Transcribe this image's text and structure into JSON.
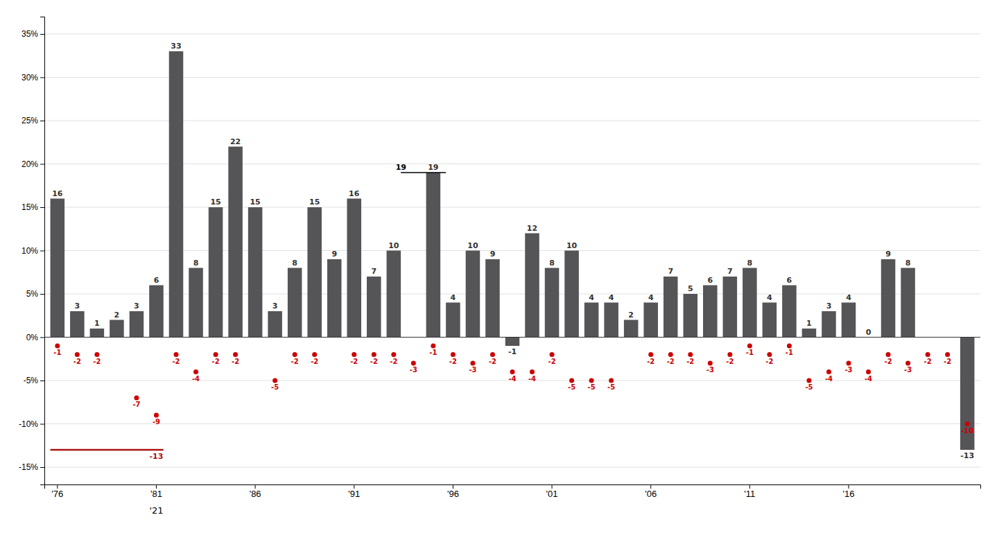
{
  "chart_data": {
    "type": "bar",
    "categories": [
      "'76",
      null,
      null,
      null,
      null,
      "'81",
      null,
      null,
      null,
      null,
      "'86",
      null,
      null,
      null,
      null,
      "'91",
      null,
      null,
      null,
      null,
      "'96",
      null,
      null,
      null,
      null,
      "'01",
      null,
      null,
      null,
      null,
      "'06",
      null,
      null,
      null,
      null,
      "'11",
      null,
      null,
      null,
      null,
      "'16",
      null,
      null,
      null,
      null,
      null,
      null
    ],
    "series": [
      {
        "type": "bar",
        "color": "#555558",
        "values": [
          16,
          3,
          1,
          2,
          3,
          6,
          33,
          8,
          15,
          22,
          15,
          3,
          8,
          15,
          9,
          16,
          7,
          10,
          null,
          19,
          4,
          10,
          9,
          -1,
          12,
          8,
          10,
          4,
          4,
          2,
          4,
          7,
          5,
          6,
          7,
          8,
          4,
          6,
          1,
          3,
          4,
          0,
          9,
          8,
          null,
          null,
          -13
        ]
      },
      {
        "type": "scatter",
        "marker": "circle",
        "color": "#cc0000",
        "values": [
          -1,
          -2,
          -2,
          null,
          -7,
          -9,
          -2,
          -4,
          -2,
          -2,
          null,
          -5,
          -2,
          -2,
          null,
          -2,
          -2,
          -2,
          -3,
          -1,
          -2,
          -3,
          -2,
          -4,
          -4,
          -2,
          -5,
          -5,
          -5,
          null,
          -2,
          -2,
          -2,
          -3,
          -2,
          -1,
          -2,
          -1,
          -5,
          -4,
          -3,
          -4,
          -2,
          -3,
          -2,
          -2,
          -10
        ]
      }
    ],
    "data_labels": true,
    "annotations": [
      {
        "text": "19",
        "y": 19,
        "color": "#000000",
        "between": [
          17,
          20
        ],
        "anchor": 17
      },
      {
        "text": "-13",
        "y": -13,
        "color": "#aa1111",
        "over": [
          0,
          5
        ],
        "anchor": 5
      },
      {
        "text": "'21",
        "anchor": 5
      }
    ],
    "ylim": [
      -17,
      37
    ],
    "yticks": [
      {
        "value": -15,
        "label": "-15%"
      },
      {
        "value": -10,
        "label": "-10%"
      },
      {
        "value": -5,
        "label": "-5%"
      },
      {
        "value": 0,
        "label": "0%"
      },
      {
        "value": 5,
        "label": "5%"
      },
      {
        "value": 10,
        "label": "10%"
      },
      {
        "value": 15,
        "label": "15%"
      },
      {
        "value": 20,
        "label": "20%"
      },
      {
        "value": 25,
        "label": "25%"
      },
      {
        "value": 30,
        "label": "30%"
      },
      {
        "value": 35,
        "label": "35%"
      }
    ],
    "grid": true
  }
}
